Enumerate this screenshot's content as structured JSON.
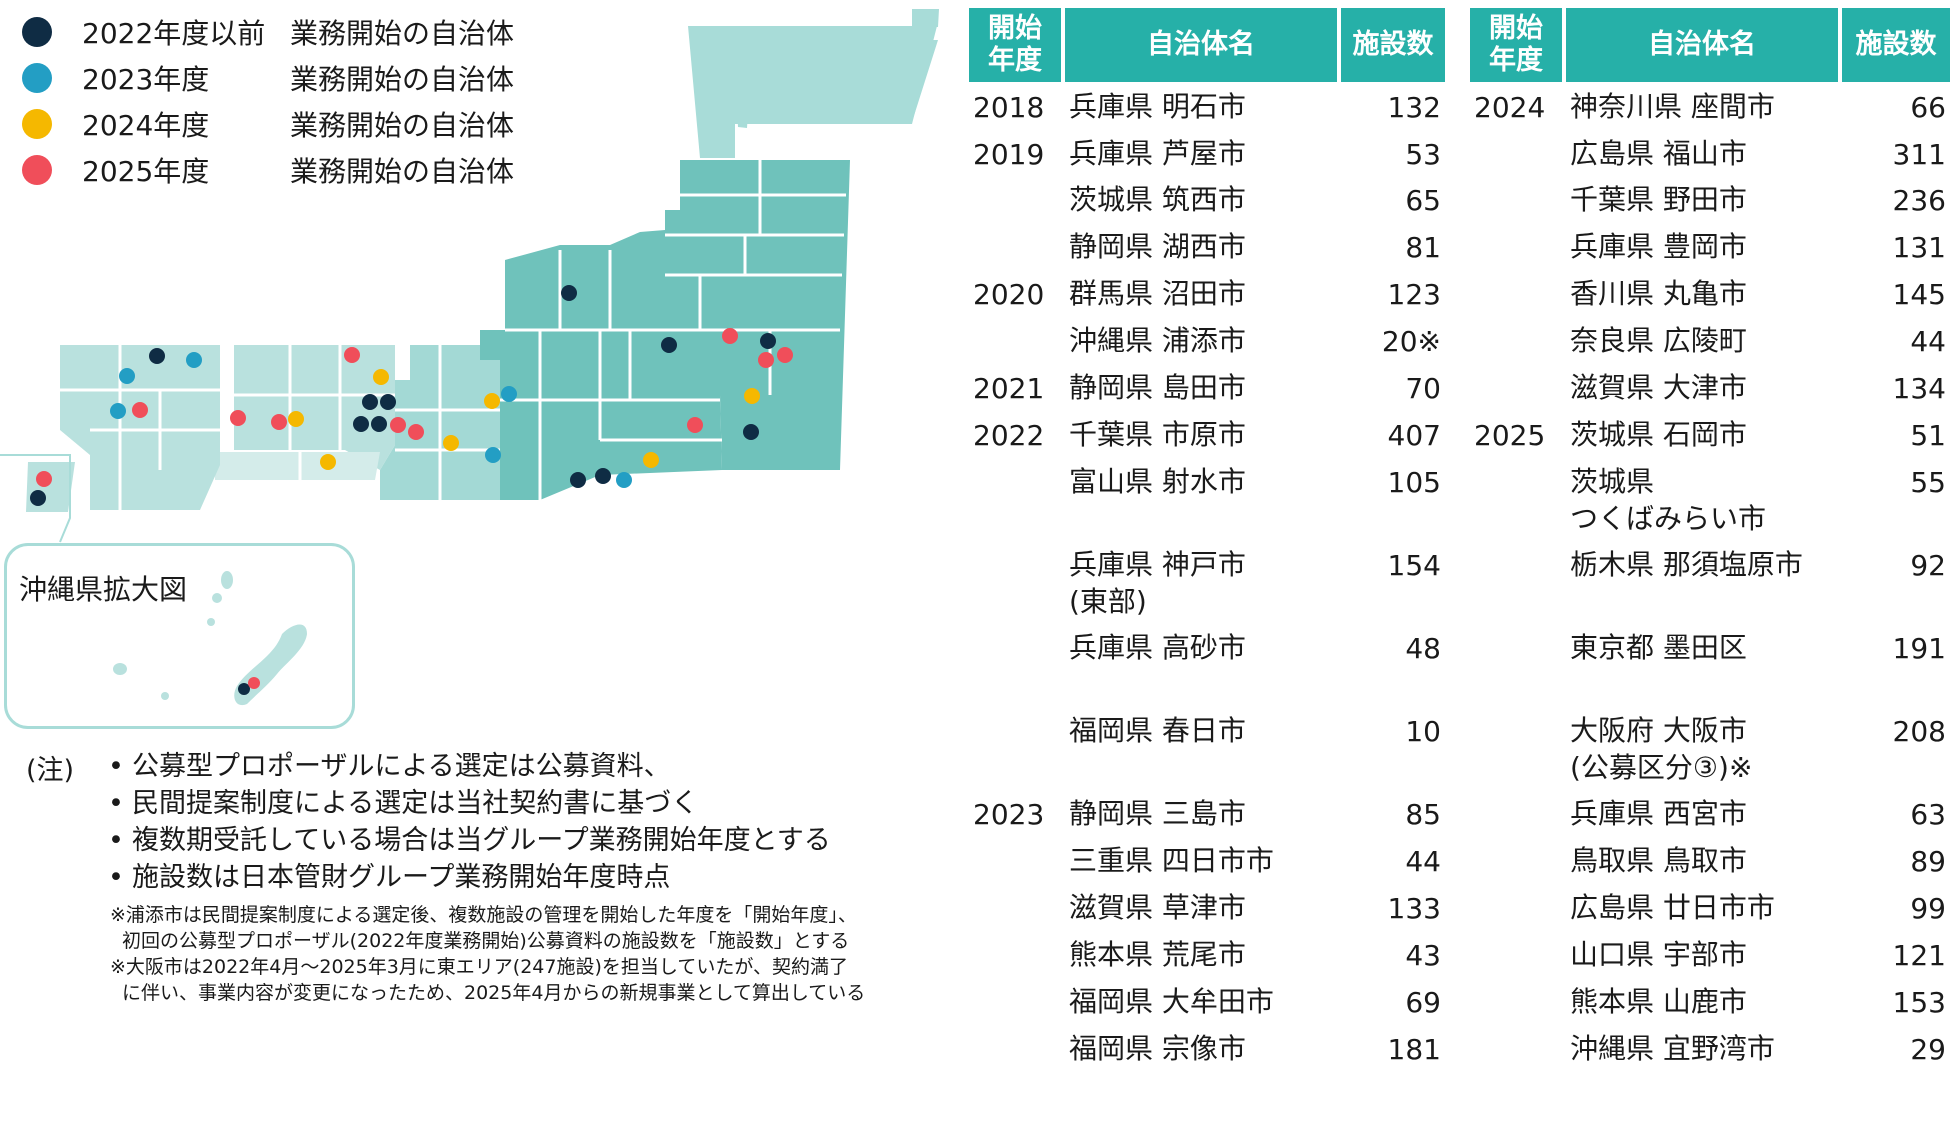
{
  "legend": [
    {
      "year": "2022年度以前",
      "label": "業務開始の自治体",
      "color": "#0f2c44"
    },
    {
      "year": "2023年度",
      "label": "業務開始の自治体",
      "color": "#239ec4"
    },
    {
      "year": "2024年度",
      "label": "業務開始の自治体",
      "color": "#f5b800"
    },
    {
      "year": "2025年度",
      "label": "業務開始の自治体",
      "color": "#f04e5a"
    }
  ],
  "map": {
    "okinawa_inset_label": "沖縄県拡大図",
    "colors": {
      "region_a": "#b9e1de",
      "region_b": "#a3d9d5",
      "region_c": "#71c2bc",
      "region_d": "#5eb8b1",
      "region_e": "#d4ecea"
    }
  },
  "notes": {
    "label": "(注)",
    "bullets": [
      "公募型プロポーザルによる選定は公募資料、",
      "民間提案制度による選定は当社契約書に基づく",
      "複数期受託している場合は当グループ業務開始年度とする",
      "施設数は日本管財グループ業務開始年度時点"
    ],
    "footnotes": [
      "※浦添市は民間提案制度による選定後、複数施設の管理を開始した年度を「開始年度」、",
      "初回の公募型プロポーザル(2022年度業務開始)公募資料の施設数を「施設数」とする",
      "※大阪市は2022年4月～2025年3月に東エリア(247施設)を担当していたが、契約満了",
      "に伴い、事業内容が変更になったため、2025年4月からの新規事業として算出している"
    ]
  },
  "table_left": {
    "headers": {
      "year_1": "開始",
      "year_2": "年度",
      "name": "自治体名",
      "count": "施設数"
    },
    "rows": [
      {
        "year": "2018",
        "pref": "兵庫県",
        "city": "明石市",
        "count": "132"
      },
      {
        "year": "2019",
        "pref": "兵庫県",
        "city": "芦屋市",
        "count": "53"
      },
      {
        "year": "",
        "pref": "茨城県",
        "city": "筑西市",
        "count": "65"
      },
      {
        "year": "",
        "pref": "静岡県",
        "city": "湖西市",
        "count": "81"
      },
      {
        "year": "2020",
        "pref": "群馬県",
        "city": "沼田市",
        "count": "123"
      },
      {
        "year": "",
        "pref": "沖縄県",
        "city": "浦添市",
        "count": "20※"
      },
      {
        "year": "2021",
        "pref": "静岡県",
        "city": "島田市",
        "count": "70"
      },
      {
        "year": "2022",
        "pref": "千葉県",
        "city": "市原市",
        "count": "407"
      },
      {
        "year": "",
        "pref": "富山県",
        "city": "射水市",
        "count": "105"
      },
      {
        "year": "",
        "pref": "兵庫県",
        "city": "神戸市",
        "line2": "(東部)",
        "count": "154"
      },
      {
        "year": "",
        "pref": "兵庫県",
        "city": "高砂市",
        "count": "48"
      },
      {
        "year": "",
        "pref": "福岡県",
        "city": "春日市",
        "count": "10"
      },
      {
        "year": "2023",
        "pref": "静岡県",
        "city": "三島市",
        "count": "85"
      },
      {
        "year": "",
        "pref": "三重県",
        "city": "四日市市",
        "count": "44"
      },
      {
        "year": "",
        "pref": "滋賀県",
        "city": "草津市",
        "count": "133"
      },
      {
        "year": "",
        "pref": "熊本県",
        "city": "荒尾市",
        "count": "43"
      },
      {
        "year": "",
        "pref": "福岡県",
        "city": "大牟田市",
        "count": "69"
      },
      {
        "year": "",
        "pref": "福岡県",
        "city": "宗像市",
        "count": "181"
      }
    ]
  },
  "table_right": {
    "headers": {
      "year_1": "開始",
      "year_2": "年度",
      "name": "自治体名",
      "count": "施設数"
    },
    "rows": [
      {
        "year": "2024",
        "pref": "神奈川県",
        "city": "座間市",
        "count": "66"
      },
      {
        "year": "",
        "pref": "広島県",
        "city": "福山市",
        "count": "311"
      },
      {
        "year": "",
        "pref": "千葉県",
        "city": "野田市",
        "count": "236"
      },
      {
        "year": "",
        "pref": "兵庫県",
        "city": "豊岡市",
        "count": "131"
      },
      {
        "year": "",
        "pref": "香川県",
        "city": "丸亀市",
        "count": "145"
      },
      {
        "year": "",
        "pref": "奈良県",
        "city": "広陵町",
        "count": "44"
      },
      {
        "year": "",
        "pref": "滋賀県",
        "city": "大津市",
        "count": "134"
      },
      {
        "year": "2025",
        "pref": "茨城県",
        "city": "石岡市",
        "count": "51"
      },
      {
        "year": "",
        "pref": "茨城県",
        "city": "",
        "line2": "つくばみらい市",
        "count": "55"
      },
      {
        "year": "",
        "pref": "栃木県",
        "city": "那須塩原市",
        "count": "92"
      },
      {
        "year": "",
        "pref": "東京都",
        "city": "墨田区",
        "count": "191"
      },
      {
        "year": "",
        "pref": "大阪府",
        "city": "大阪市",
        "line2": "(公募区分③)※",
        "count": "208"
      },
      {
        "year": "",
        "pref": "兵庫県",
        "city": "西宮市",
        "count": "63"
      },
      {
        "year": "",
        "pref": "鳥取県",
        "city": "鳥取市",
        "count": "89"
      },
      {
        "year": "",
        "pref": "広島県",
        "city": "廿日市市",
        "count": "99"
      },
      {
        "year": "",
        "pref": "山口県",
        "city": "宇部市",
        "count": "121"
      },
      {
        "year": "",
        "pref": "熊本県",
        "city": "山鹿市",
        "count": "153"
      },
      {
        "year": "",
        "pref": "沖縄県",
        "city": "宜野湾市",
        "count": "29"
      }
    ]
  }
}
